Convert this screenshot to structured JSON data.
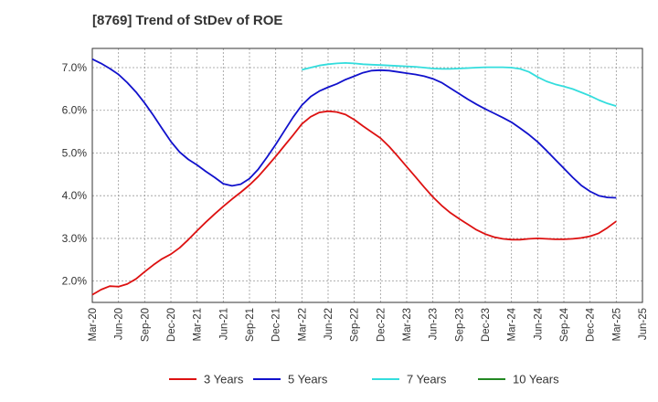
{
  "chart_data": {
    "type": "line",
    "title": "[8769]  Trend of StDev of ROE",
    "xlabel": "",
    "ylabel": "",
    "x_ticks": [
      "Mar-20",
      "Jun-20",
      "Sep-20",
      "Dec-20",
      "Mar-21",
      "Jun-21",
      "Sep-21",
      "Dec-21",
      "Mar-22",
      "Jun-22",
      "Sep-22",
      "Dec-22",
      "Mar-23",
      "Jun-23",
      "Sep-23",
      "Dec-23",
      "Mar-24",
      "Jun-24",
      "Sep-24",
      "Dec-24",
      "Mar-25",
      "Jun-25"
    ],
    "y_ticks": [
      "2.0%",
      "3.0%",
      "4.0%",
      "5.0%",
      "6.0%",
      "7.0%"
    ],
    "y_tick_values": [
      2.0,
      3.0,
      4.0,
      5.0,
      6.0,
      7.0
    ],
    "ylim": [
      1.5,
      7.45
    ],
    "grid": true,
    "legend_position": "bottom",
    "series": [
      {
        "name": "3 Years",
        "color": "#dd1111",
        "x": [
          "Mar-20",
          "Apr-20",
          "May-20",
          "Jun-20",
          "Jul-20",
          "Aug-20",
          "Sep-20",
          "Oct-20",
          "Nov-20",
          "Dec-20",
          "Jan-21",
          "Feb-21",
          "Mar-21",
          "Apr-21",
          "May-21",
          "Jun-21",
          "Jul-21",
          "Aug-21",
          "Sep-21",
          "Oct-21",
          "Nov-21",
          "Dec-21",
          "Jan-22",
          "Feb-22",
          "Mar-22",
          "Apr-22",
          "May-22",
          "Jun-22",
          "Jul-22",
          "Aug-22",
          "Sep-22",
          "Oct-22",
          "Nov-22",
          "Dec-22",
          "Jan-23",
          "Feb-23",
          "Mar-23",
          "Apr-23",
          "May-23",
          "Jun-23",
          "Jul-23",
          "Aug-23",
          "Sep-23",
          "Oct-23",
          "Nov-23",
          "Dec-23",
          "Jan-24",
          "Feb-24",
          "Mar-24",
          "Apr-24",
          "May-24",
          "Jun-24",
          "Jul-24",
          "Aug-24",
          "Sep-24",
          "Oct-24",
          "Nov-24",
          "Dec-24",
          "Jan-25",
          "Feb-25",
          "Mar-25"
        ],
        "values": [
          1.68,
          1.8,
          1.88,
          1.87,
          1.93,
          2.05,
          2.22,
          2.38,
          2.52,
          2.63,
          2.78,
          2.97,
          3.18,
          3.38,
          3.57,
          3.75,
          3.92,
          4.08,
          4.25,
          4.45,
          4.68,
          4.92,
          5.17,
          5.42,
          5.68,
          5.85,
          5.95,
          5.98,
          5.96,
          5.9,
          5.78,
          5.63,
          5.49,
          5.35,
          5.15,
          4.92,
          4.68,
          4.44,
          4.2,
          3.97,
          3.77,
          3.6,
          3.46,
          3.33,
          3.2,
          3.1,
          3.03,
          2.99,
          2.97,
          2.97,
          2.99,
          3.0,
          2.99,
          2.98,
          2.98,
          2.99,
          3.01,
          3.05,
          3.12,
          3.25,
          3.4
        ]
      },
      {
        "name": "5 Years",
        "color": "#1111cc",
        "x": [
          "Mar-20",
          "Apr-20",
          "May-20",
          "Jun-20",
          "Jul-20",
          "Aug-20",
          "Sep-20",
          "Oct-20",
          "Nov-20",
          "Dec-20",
          "Jan-21",
          "Feb-21",
          "Mar-21",
          "Apr-21",
          "May-21",
          "Jun-21",
          "Jul-21",
          "Aug-21",
          "Sep-21",
          "Oct-21",
          "Nov-21",
          "Dec-21",
          "Jan-22",
          "Feb-22",
          "Mar-22",
          "Apr-22",
          "May-22",
          "Jun-22",
          "Jul-22",
          "Aug-22",
          "Sep-22",
          "Oct-22",
          "Nov-22",
          "Dec-22",
          "Jan-23",
          "Feb-23",
          "Mar-23",
          "Apr-23",
          "May-23",
          "Jun-23",
          "Jul-23",
          "Aug-23",
          "Sep-23",
          "Oct-23",
          "Nov-23",
          "Dec-23",
          "Jan-24",
          "Feb-24",
          "Mar-24",
          "Apr-24",
          "May-24",
          "Jun-24",
          "Jul-24",
          "Aug-24",
          "Sep-24",
          "Oct-24",
          "Nov-24",
          "Dec-24",
          "Jan-25",
          "Feb-25",
          "Mar-25"
        ],
        "values": [
          7.2,
          7.1,
          6.98,
          6.84,
          6.65,
          6.43,
          6.17,
          5.88,
          5.57,
          5.27,
          5.02,
          4.85,
          4.72,
          4.57,
          4.43,
          4.28,
          4.23,
          4.27,
          4.4,
          4.62,
          4.9,
          5.2,
          5.52,
          5.84,
          6.12,
          6.32,
          6.45,
          6.54,
          6.62,
          6.72,
          6.8,
          6.88,
          6.93,
          6.94,
          6.93,
          6.9,
          6.87,
          6.84,
          6.8,
          6.74,
          6.65,
          6.52,
          6.39,
          6.26,
          6.14,
          6.03,
          5.93,
          5.83,
          5.72,
          5.58,
          5.43,
          5.26,
          5.06,
          4.85,
          4.64,
          4.43,
          4.24,
          4.1,
          4.0,
          3.96,
          3.95
        ]
      },
      {
        "name": "7 Years",
        "color": "#33dddd",
        "x": [
          "Mar-22",
          "Apr-22",
          "May-22",
          "Jun-22",
          "Jul-22",
          "Aug-22",
          "Sep-22",
          "Oct-22",
          "Nov-22",
          "Dec-22",
          "Jan-23",
          "Feb-23",
          "Mar-23",
          "Apr-23",
          "May-23",
          "Jun-23",
          "Jul-23",
          "Aug-23",
          "Sep-23",
          "Oct-23",
          "Nov-23",
          "Dec-23",
          "Jan-24",
          "Feb-24",
          "Mar-24",
          "Apr-24",
          "May-24",
          "Jun-24",
          "Jul-24",
          "Aug-24",
          "Sep-24",
          "Oct-24",
          "Nov-24",
          "Dec-24",
          "Jan-25",
          "Feb-25",
          "Mar-25"
        ],
        "values": [
          6.95,
          7.0,
          7.05,
          7.08,
          7.1,
          7.11,
          7.1,
          7.08,
          7.07,
          7.06,
          7.05,
          7.04,
          7.03,
          7.02,
          7.0,
          6.98,
          6.97,
          6.97,
          6.98,
          6.99,
          7.0,
          7.01,
          7.01,
          7.01,
          7.0,
          6.97,
          6.9,
          6.78,
          6.68,
          6.61,
          6.56,
          6.5,
          6.42,
          6.34,
          6.24,
          6.16,
          6.1
        ]
      },
      {
        "name": "10 Years",
        "color": "#228822",
        "x": [],
        "values": []
      }
    ]
  }
}
